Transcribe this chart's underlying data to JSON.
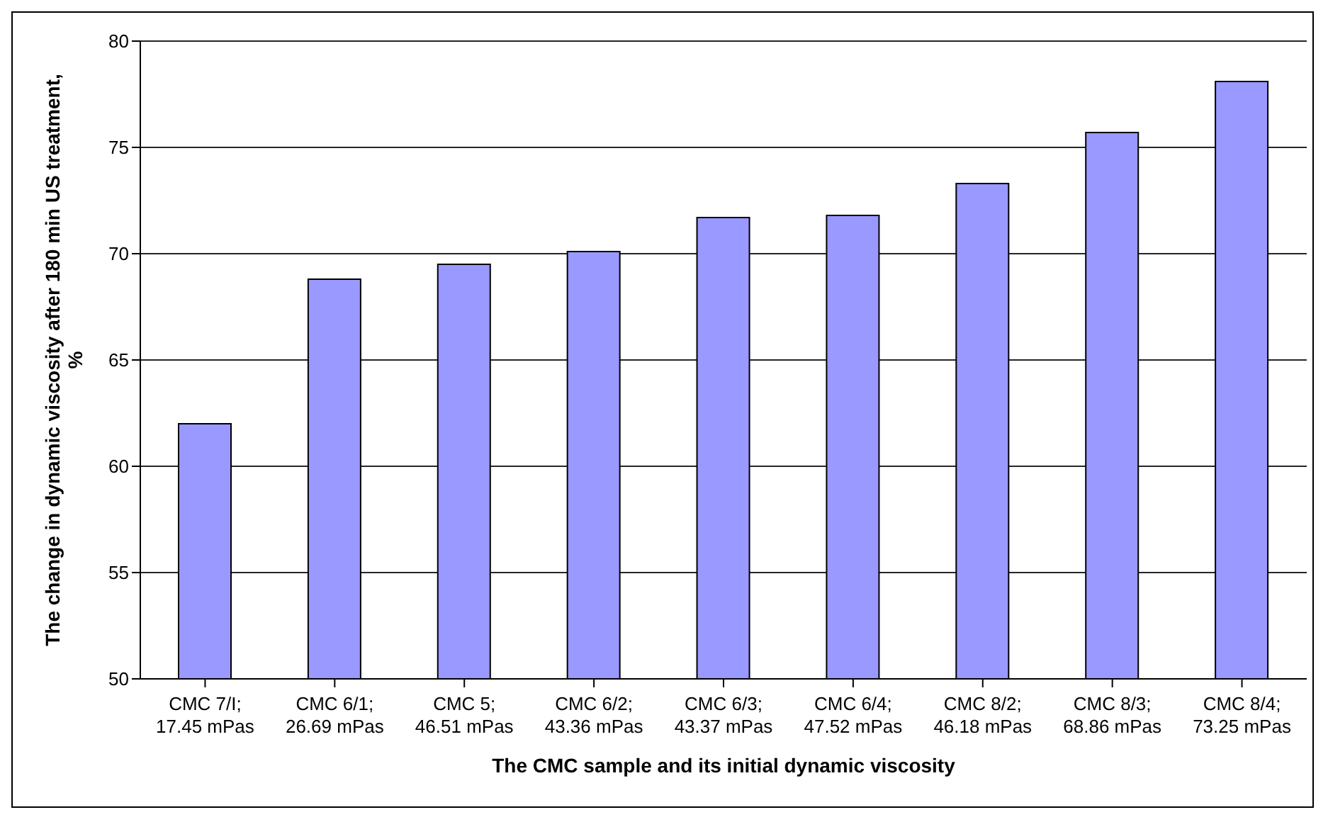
{
  "chart_data": {
    "type": "bar",
    "xlabel": "The CMC sample and its initial dynamic viscosity",
    "ylabel": "The change in dynamic viscosity after 180 min US treatment, %",
    "categories": [
      "CMC 7/I; 17.45 mPas",
      "CMC 6/1; 26.69 mPas",
      "CMC 5; 46.51 mPas",
      "CMC 6/2; 43.36 mPas",
      "CMC 6/3; 43.37 mPas",
      "CMC 6/4; 47.52 mPas",
      "CMC 8/2; 46.18 mPas",
      "CMC 8/3; 68.86 mPas",
      "CMC 8/4; 73.25 mPas"
    ],
    "values": [
      62.0,
      68.8,
      69.5,
      70.1,
      71.7,
      71.8,
      73.3,
      75.7,
      78.1
    ],
    "color": "#9999ff",
    "ylim": [
      50,
      80
    ],
    "yticks": [
      50,
      55,
      60,
      65,
      70,
      75,
      80
    ],
    "grid": "y"
  }
}
